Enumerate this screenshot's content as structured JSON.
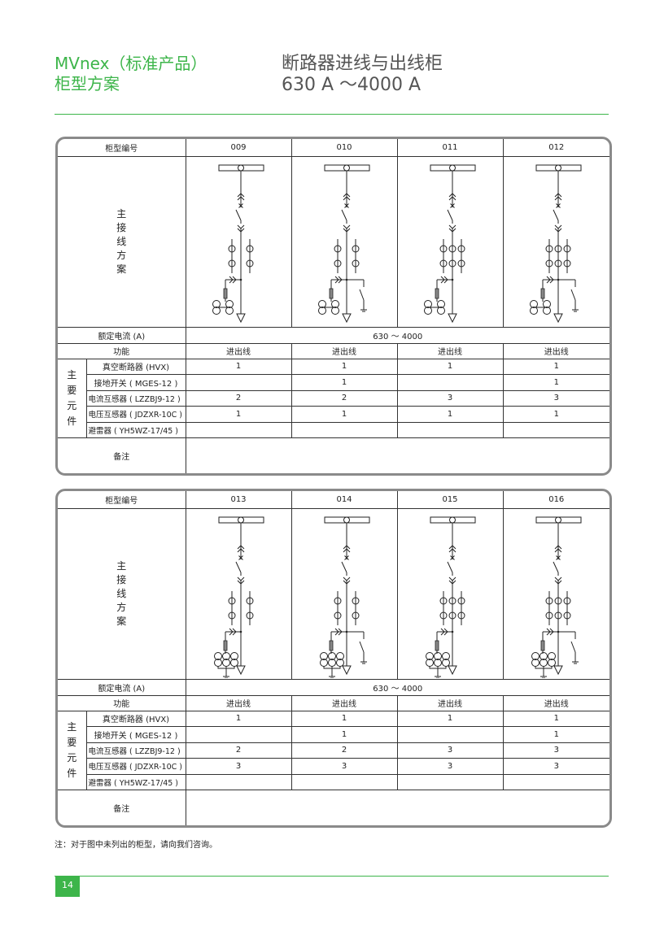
{
  "header": {
    "left_line1": "MVnex（标准产品）",
    "left_line2": "柜型方案",
    "right_line1": "断路器进线与出线柜",
    "right_line2": "630 A ～4000 A"
  },
  "labels": {
    "cabinet_no": "柜型编号",
    "main_wiring": [
      "主",
      "接",
      "线",
      "方",
      "案"
    ],
    "rated_current": "额定电流 (A)",
    "function": "功能",
    "main_components": [
      "主",
      "要",
      "元",
      "件"
    ],
    "components": [
      "真空断路器 (HVX)",
      "接地开关 ( MGES-12 )",
      "电流互感器 ( LZZBJ9-12 )",
      "电压互感器 ( JDZXR-10C )",
      "避雷器 ( YH5WZ-17/45 )"
    ],
    "remarks": "备注"
  },
  "tables": [
    {
      "rated_current": "630 ～ 4000",
      "columns": [
        {
          "no": "009",
          "function": "进出线",
          "values": [
            "1",
            "",
            "2",
            "1",
            ""
          ],
          "diagram": {
            "ct": 2,
            "earth_switch": false,
            "vt": 2,
            "vt_grounded": false
          }
        },
        {
          "no": "010",
          "function": "进出线",
          "values": [
            "1",
            "1",
            "2",
            "1",
            ""
          ],
          "diagram": {
            "ct": 2,
            "earth_switch": true,
            "vt": 2,
            "vt_grounded": false
          }
        },
        {
          "no": "011",
          "function": "进出线",
          "values": [
            "1",
            "",
            "3",
            "1",
            ""
          ],
          "diagram": {
            "ct": 3,
            "earth_switch": false,
            "vt": 2,
            "vt_grounded": false
          }
        },
        {
          "no": "012",
          "function": "进出线",
          "values": [
            "1",
            "1",
            "3",
            "1",
            ""
          ],
          "diagram": {
            "ct": 3,
            "earth_switch": true,
            "vt": 2,
            "vt_grounded": false
          }
        }
      ]
    },
    {
      "rated_current": "630 ～ 4000",
      "columns": [
        {
          "no": "013",
          "function": "进出线",
          "values": [
            "1",
            "",
            "2",
            "3",
            ""
          ],
          "diagram": {
            "ct": 2,
            "earth_switch": false,
            "vt": 3,
            "vt_grounded": true
          }
        },
        {
          "no": "014",
          "function": "进出线",
          "values": [
            "1",
            "1",
            "2",
            "3",
            ""
          ],
          "diagram": {
            "ct": 2,
            "earth_switch": true,
            "vt": 3,
            "vt_grounded": true
          }
        },
        {
          "no": "015",
          "function": "进出线",
          "values": [
            "1",
            "",
            "3",
            "3",
            ""
          ],
          "diagram": {
            "ct": 3,
            "earth_switch": false,
            "vt": 3,
            "vt_grounded": true
          }
        },
        {
          "no": "016",
          "function": "进出线",
          "values": [
            "1",
            "1",
            "3",
            "3",
            ""
          ],
          "diagram": {
            "ct": 3,
            "earth_switch": true,
            "vt": 3,
            "vt_grounded": true
          }
        }
      ]
    }
  ],
  "note": "注：对于图中未列出的柜型，请向我们咨询。",
  "page_number": "14",
  "colors": {
    "accent": "#3db54a",
    "frame": "#8a8a8a"
  }
}
